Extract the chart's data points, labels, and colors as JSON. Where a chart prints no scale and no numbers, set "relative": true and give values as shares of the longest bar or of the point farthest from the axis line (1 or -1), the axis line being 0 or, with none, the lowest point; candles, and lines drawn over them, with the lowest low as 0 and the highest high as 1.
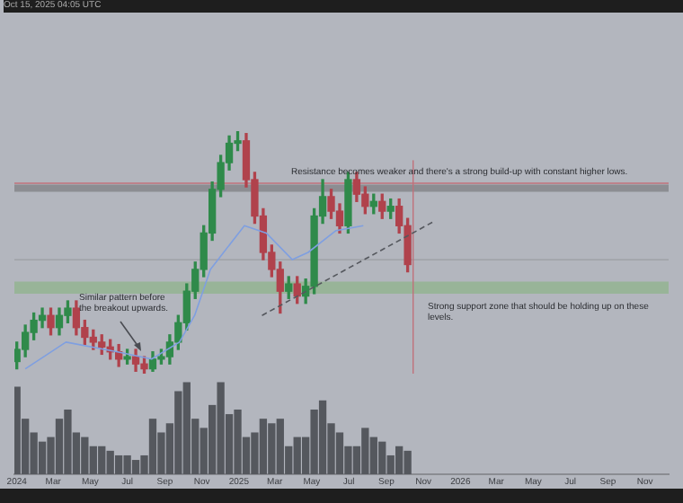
{
  "chart_data": [
    {
      "type": "candlestick",
      "subtitle": "Oct 15, 2025 04:05 UTC",
      "relative": true,
      "grid": false,
      "legend": false,
      "tick_labels": false,
      "x": [
        "2024-01-01",
        "2024-01-15",
        "2024-01-29",
        "2024-02-12",
        "2024-02-26",
        "2024-03-11",
        "2024-03-25",
        "2024-04-08",
        "2024-04-22",
        "2024-05-06",
        "2024-05-20",
        "2024-06-03",
        "2024-06-17",
        "2024-07-01",
        "2024-07-15",
        "2024-07-29",
        "2024-08-12",
        "2024-08-26",
        "2024-09-09",
        "2024-09-23",
        "2024-10-07",
        "2024-10-21",
        "2024-11-04",
        "2024-11-18",
        "2024-12-02",
        "2024-12-16",
        "2024-12-30",
        "2025-01-13",
        "2025-01-27",
        "2025-02-10",
        "2025-02-24",
        "2025-03-10",
        "2025-03-24",
        "2025-04-07",
        "2025-04-21",
        "2025-05-05",
        "2025-05-19",
        "2025-06-02",
        "2025-06-16",
        "2025-06-30",
        "2025-07-14",
        "2025-07-28",
        "2025-08-11",
        "2025-08-25",
        "2025-09-08",
        "2025-09-22",
        "2025-10-06"
      ],
      "ohlc": [
        [
          0.05,
          0.13,
          0.02,
          0.1
        ],
        [
          0.1,
          0.2,
          0.07,
          0.17
        ],
        [
          0.17,
          0.25,
          0.14,
          0.22
        ],
        [
          0.22,
          0.27,
          0.19,
          0.24
        ],
        [
          0.24,
          0.27,
          0.16,
          0.19
        ],
        [
          0.19,
          0.27,
          0.16,
          0.24
        ],
        [
          0.24,
          0.3,
          0.21,
          0.27
        ],
        [
          0.27,
          0.3,
          0.16,
          0.19
        ],
        [
          0.19,
          0.22,
          0.12,
          0.15
        ],
        [
          0.15,
          0.18,
          0.1,
          0.13
        ],
        [
          0.13,
          0.16,
          0.08,
          0.11
        ],
        [
          0.11,
          0.14,
          0.06,
          0.09
        ],
        [
          0.09,
          0.12,
          0.03,
          0.06
        ],
        [
          0.06,
          0.1,
          0.04,
          0.07
        ],
        [
          0.07,
          0.1,
          0.01,
          0.04
        ],
        [
          0.04,
          0.07,
          0.0,
          0.02
        ],
        [
          0.02,
          0.09,
          0.01,
          0.06
        ],
        [
          0.06,
          0.1,
          0.04,
          0.07
        ],
        [
          0.07,
          0.16,
          0.04,
          0.13
        ],
        [
          0.13,
          0.24,
          0.1,
          0.21
        ],
        [
          0.21,
          0.37,
          0.18,
          0.34
        ],
        [
          0.34,
          0.46,
          0.31,
          0.43
        ],
        [
          0.43,
          0.61,
          0.4,
          0.58
        ],
        [
          0.58,
          0.79,
          0.55,
          0.76
        ],
        [
          0.76,
          0.9,
          0.73,
          0.87
        ],
        [
          0.87,
          0.98,
          0.84,
          0.95
        ],
        [
          0.95,
          1.0,
          0.92,
          0.96
        ],
        [
          0.96,
          0.99,
          0.77,
          0.8
        ],
        [
          0.8,
          0.83,
          0.62,
          0.65
        ],
        [
          0.65,
          0.68,
          0.47,
          0.5
        ],
        [
          0.5,
          0.53,
          0.4,
          0.43
        ],
        [
          0.43,
          0.46,
          0.25,
          0.34
        ],
        [
          0.34,
          0.4,
          0.31,
          0.37
        ],
        [
          0.37,
          0.4,
          0.29,
          0.32
        ],
        [
          0.32,
          0.39,
          0.29,
          0.36
        ],
        [
          0.36,
          0.68,
          0.33,
          0.65
        ],
        [
          0.65,
          0.8,
          0.62,
          0.73
        ],
        [
          0.73,
          0.76,
          0.64,
          0.67
        ],
        [
          0.67,
          0.7,
          0.58,
          0.61
        ],
        [
          0.61,
          0.83,
          0.58,
          0.8
        ],
        [
          0.8,
          0.83,
          0.71,
          0.74
        ],
        [
          0.74,
          0.77,
          0.66,
          0.69
        ],
        [
          0.69,
          0.74,
          0.66,
          0.71
        ],
        [
          0.71,
          0.74,
          0.64,
          0.67
        ],
        [
          0.67,
          0.72,
          0.64,
          0.69
        ],
        [
          0.69,
          0.72,
          0.58,
          0.61
        ],
        [
          0.61,
          0.64,
          0.42,
          0.45
        ]
      ],
      "series": [
        {
          "type": "line",
          "color": "#7f9fe0",
          "x": [
            "2024-01-15",
            "2024-03-22",
            "2024-06-15",
            "2024-08-10",
            "2024-09-25",
            "2024-10-20",
            "2024-11-15",
            "2025-01-10",
            "2025-02-15",
            "2025-03-30",
            "2025-04-25",
            "2025-06-10",
            "2025-07-25"
          ],
          "values": [
            0.02,
            0.13,
            0.09,
            0.06,
            0.13,
            0.24,
            0.43,
            0.61,
            0.58,
            0.47,
            0.5,
            0.59,
            0.61
          ]
        },
        {
          "type": "line",
          "color": "#55585e",
          "line_style": "dashed",
          "x": [
            "2025-02-08",
            "2025-11-20"
          ],
          "values": [
            0.24,
            0.63
          ]
        }
      ],
      "xlim": [
        "2023-12-28",
        "2026-12-10"
      ],
      "bands": [
        {
          "axis": "y",
          "from": 0.33,
          "to": 0.38,
          "color": "#98b498"
        },
        {
          "axis": "y",
          "from": 0.75,
          "to": 0.78,
          "color": "#8c8d92"
        }
      ],
      "ref_lines": [
        {
          "axis": "y",
          "value": 0.785,
          "color": "#c0707a"
        },
        {
          "axis": "y",
          "value": 0.47,
          "color": "#9a9ca2"
        },
        {
          "axis": "x",
          "value": "2025-10-15",
          "color": "#c0707a"
        }
      ],
      "annotations": [
        "Similar pattern before the breakout upwards.",
        "Resistance becomes weaker and there's a strong build-up with constant higher lows.",
        "Strong support zone that should be holding up on these levels."
      ]
    },
    {
      "type": "bar",
      "relative": true,
      "grid": false,
      "legend": false,
      "tick_labels": "x",
      "color": "#55585e",
      "x": [
        "2024-01-01",
        "2024-01-15",
        "2024-01-29",
        "2024-02-12",
        "2024-02-26",
        "2024-03-11",
        "2024-03-25",
        "2024-04-08",
        "2024-04-22",
        "2024-05-06",
        "2024-05-20",
        "2024-06-03",
        "2024-06-17",
        "2024-07-01",
        "2024-07-15",
        "2024-07-29",
        "2024-08-12",
        "2024-08-26",
        "2024-09-09",
        "2024-09-23",
        "2024-10-07",
        "2024-10-21",
        "2024-11-04",
        "2024-11-18",
        "2024-12-02",
        "2024-12-16",
        "2024-12-30",
        "2025-01-13",
        "2025-01-27",
        "2025-02-10",
        "2025-02-24",
        "2025-03-10",
        "2025-03-24",
        "2025-04-07",
        "2025-04-21",
        "2025-05-05",
        "2025-05-19",
        "2025-06-02",
        "2025-06-16",
        "2025-06-30",
        "2025-07-14",
        "2025-07-28",
        "2025-08-11",
        "2025-08-25",
        "2025-09-08",
        "2025-09-22",
        "2025-10-06"
      ],
      "values": [
        0.95,
        0.6,
        0.45,
        0.35,
        0.4,
        0.6,
        0.7,
        0.45,
        0.4,
        0.3,
        0.3,
        0.25,
        0.2,
        0.2,
        0.15,
        0.2,
        0.6,
        0.45,
        0.55,
        0.9,
        1.0,
        0.6,
        0.5,
        0.75,
        1.0,
        0.65,
        0.7,
        0.4,
        0.45,
        0.6,
        0.55,
        0.6,
        0.3,
        0.4,
        0.4,
        0.7,
        0.8,
        0.55,
        0.45,
        0.3,
        0.3,
        0.5,
        0.4,
        0.35,
        0.2,
        0.3,
        0.25
      ],
      "xlim": [
        "2023-12-28",
        "2026-12-10"
      ],
      "xticks": [
        {
          "value": "2024-01-01",
          "label": "2024"
        },
        {
          "value": "2024-03-01",
          "label": "Mar"
        },
        {
          "value": "2024-05-01",
          "label": "May"
        },
        {
          "value": "2024-07-01",
          "label": "Jul"
        },
        {
          "value": "2024-09-01",
          "label": "Sep"
        },
        {
          "value": "2024-11-01",
          "label": "Nov"
        },
        {
          "value": "2025-01-01",
          "label": "2025"
        },
        {
          "value": "2025-03-01",
          "label": "Mar"
        },
        {
          "value": "2025-05-01",
          "label": "May"
        },
        {
          "value": "2025-07-01",
          "label": "Jul"
        },
        {
          "value": "2025-09-01",
          "label": "Sep"
        },
        {
          "value": "2025-11-01",
          "label": "Nov"
        },
        {
          "value": "2026-01-01",
          "label": "2026"
        },
        {
          "value": "2026-03-01",
          "label": "Mar"
        },
        {
          "value": "2026-05-01",
          "label": "May"
        },
        {
          "value": "2026-07-01",
          "label": "Jul"
        },
        {
          "value": "2026-09-01",
          "label": "Sep"
        },
        {
          "value": "2026-11-01",
          "label": "Nov"
        }
      ]
    }
  ]
}
